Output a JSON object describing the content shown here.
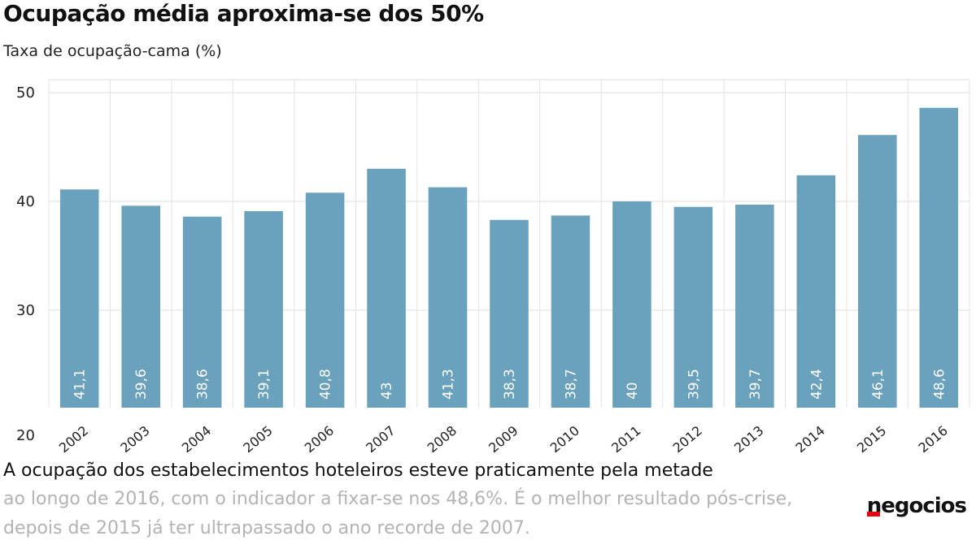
{
  "title": "Ocupação média aproxima-se dos 50%",
  "subtitle": "Taxa de ocupação-cama (%)",
  "caption": {
    "line1": "A ocupação dos estabelecimentos hoteleiros esteve praticamente pela metade",
    "line2": "ao longo de 2016, com o indicador a fixar-se nos 48,6%. É o melhor resultado pós-crise,",
    "line3": "depois de 2015 já ter ultrapassado o ano recorde de 2007."
  },
  "logo": {
    "text": "negocios",
    "accent_color": "#e30613"
  },
  "chart_data": {
    "type": "bar",
    "categories": [
      "2002",
      "2003",
      "2004",
      "2005",
      "2006",
      "2007",
      "2008",
      "2009",
      "2010",
      "2011",
      "2012",
      "2013",
      "2014",
      "2015",
      "2016"
    ],
    "values": [
      41.1,
      39.6,
      38.6,
      39.1,
      40.8,
      43,
      41.3,
      38.3,
      38.7,
      40,
      39.5,
      39.7,
      42.4,
      46.1,
      48.6
    ],
    "data_labels": [
      "41,1",
      "39,6",
      "38,6",
      "39,1",
      "40,8",
      "43",
      "41,3",
      "38,3",
      "38,7",
      "40",
      "39,5",
      "39,7",
      "42,4",
      "46,1",
      "48,6"
    ],
    "title": "Ocupação média aproxima-se dos 50%",
    "ylabel": "Taxa de ocupação-cama (%)",
    "ylim": [
      20,
      50
    ],
    "yticks": [
      20,
      30,
      40,
      50
    ],
    "grid": true,
    "bar_color": "#6aa1bd"
  }
}
